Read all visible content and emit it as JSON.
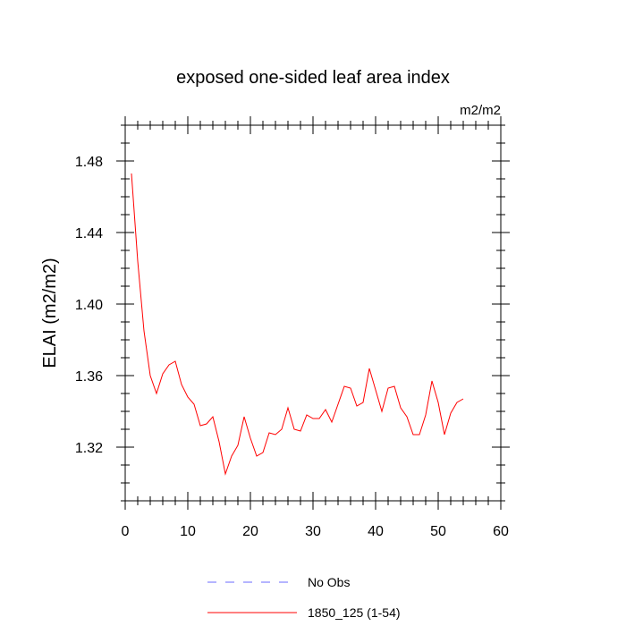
{
  "chart_data": {
    "type": "line",
    "title": "exposed one-sided leaf area index",
    "units_label": "m2/m2",
    "ylabel": "ELAI  (m2/m2)",
    "xlabel": "",
    "xlim": [
      0,
      60
    ],
    "ylim": [
      1.29,
      1.5
    ],
    "x_ticks": [
      0,
      10,
      20,
      30,
      40,
      50,
      60
    ],
    "y_ticks": [
      1.32,
      1.36,
      1.4,
      1.44,
      1.48
    ],
    "y_tick_labels": [
      "1.32",
      "1.36",
      "1.40",
      "1.44",
      "1.48"
    ],
    "grid": false,
    "series": [
      {
        "name": "1850_125 (1-54)",
        "color": "#ff0000",
        "style": "solid",
        "x": [
          1,
          2,
          3,
          4,
          5,
          6,
          7,
          8,
          9,
          10,
          11,
          12,
          13,
          14,
          15,
          16,
          17,
          18,
          19,
          20,
          21,
          22,
          23,
          24,
          25,
          26,
          27,
          28,
          29,
          30,
          31,
          32,
          33,
          34,
          35,
          36,
          37,
          38,
          39,
          40,
          41,
          42,
          43,
          44,
          45,
          46,
          47,
          48,
          49,
          50,
          51,
          52,
          53,
          54
        ],
        "values": [
          1.473,
          1.424,
          1.385,
          1.36,
          1.35,
          1.361,
          1.366,
          1.368,
          1.355,
          1.348,
          1.344,
          1.332,
          1.333,
          1.337,
          1.323,
          1.305,
          1.315,
          1.321,
          1.337,
          1.325,
          1.315,
          1.317,
          1.328,
          1.327,
          1.33,
          1.342,
          1.33,
          1.329,
          1.338,
          1.336,
          1.336,
          1.341,
          1.334,
          1.344,
          1.354,
          1.353,
          1.343,
          1.345,
          1.364,
          1.352,
          1.34,
          1.353,
          1.354,
          1.342,
          1.337,
          1.327,
          1.327,
          1.338,
          1.357,
          1.345,
          1.327,
          1.339,
          1.345,
          1.347
        ]
      },
      {
        "name": "No Obs",
        "color": "#6b6bff",
        "style": "dashed",
        "x": [],
        "values": []
      }
    ],
    "legend": {
      "placement": "bottom-center",
      "entries": [
        "No Obs",
        "1850_125 (1-54)"
      ]
    }
  }
}
